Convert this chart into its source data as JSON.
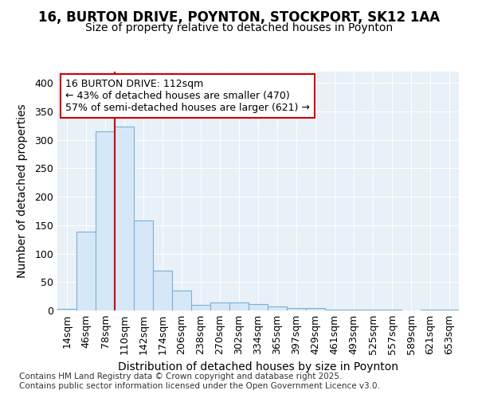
{
  "title1": "16, BURTON DRIVE, POYNTON, STOCKPORT, SK12 1AA",
  "title2": "Size of property relative to detached houses in Poynton",
  "xlabel": "Distribution of detached houses by size in Poynton",
  "ylabel": "Number of detached properties",
  "categories": [
    "14sqm",
    "46sqm",
    "78sqm",
    "110sqm",
    "142sqm",
    "174sqm",
    "206sqm",
    "238sqm",
    "270sqm",
    "302sqm",
    "334sqm",
    "365sqm",
    "397sqm",
    "429sqm",
    "461sqm",
    "493sqm",
    "525sqm",
    "557sqm",
    "589sqm",
    "621sqm",
    "653sqm"
  ],
  "values": [
    3,
    138,
    315,
    323,
    158,
    70,
    35,
    10,
    14,
    14,
    11,
    7,
    4,
    4,
    1,
    1,
    1,
    1,
    0,
    1,
    2
  ],
  "bar_color": "#d6e8f7",
  "bar_edge_color": "#7bafd4",
  "vline_color": "#cc0000",
  "annotation_text": "16 BURTON DRIVE: 112sqm\n← 43% of detached houses are smaller (470)\n57% of semi-detached houses are larger (621) →",
  "annotation_box_color": "#ffffff",
  "annotation_box_edge": "#cc0000",
  "ylim": [
    0,
    420
  ],
  "yticks": [
    0,
    50,
    100,
    150,
    200,
    250,
    300,
    350,
    400
  ],
  "background_color": "#e8f0f8",
  "grid_color": "#ffffff",
  "footer": "Contains HM Land Registry data © Crown copyright and database right 2025.\nContains public sector information licensed under the Open Government Licence v3.0.",
  "title_fontsize": 12,
  "subtitle_fontsize": 10,
  "axis_label_fontsize": 10,
  "tick_fontsize": 9,
  "annotation_fontsize": 9,
  "footer_fontsize": 7.5
}
